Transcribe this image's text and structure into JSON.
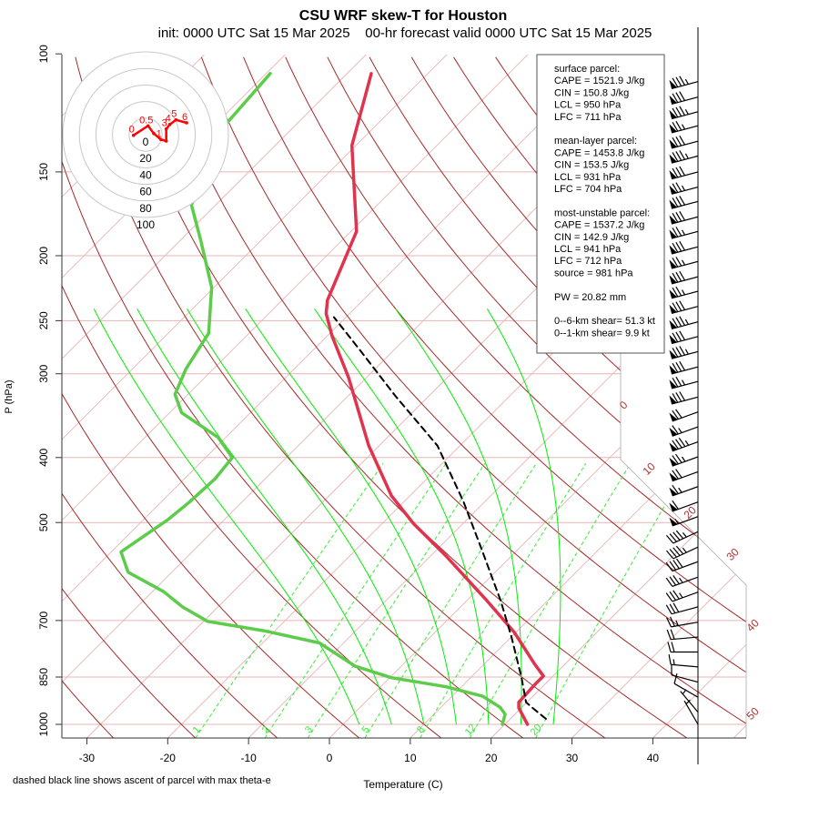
{
  "chart_data": {
    "type": "line",
    "title": "CSU WRF skew-T for Houston",
    "subtitle": "init: 0000 UTC Sat 15 Mar 2025    00-hr forecast valid 0000 UTC Sat 15 Mar 2025",
    "xlabel": "Temperature (C)",
    "ylabel": "P (hPa)",
    "note": "dashed black line shows ascent of parcel with max theta-e",
    "xlim": [
      -33,
      50
    ],
    "ylim": [
      1050,
      100
    ],
    "yscale": "log",
    "skew": "45deg",
    "xticks": [
      -30,
      -20,
      -10,
      0,
      10,
      20,
      30,
      40
    ],
    "yticks": [
      1000,
      850,
      700,
      500,
      400,
      300,
      250,
      200,
      150,
      100
    ],
    "isotherm_labels": [
      "0",
      "10",
      "20",
      "30",
      "40",
      "50"
    ],
    "mixing_ratio_labels": [
      "1",
      "2",
      "3",
      "5",
      "8",
      "12",
      "20"
    ],
    "moist_adiabats_T1000": [
      2,
      6,
      10,
      14,
      18,
      22,
      26
    ],
    "colors": {
      "temperature": "#e0334d",
      "dewpoint": "#5ccc4a",
      "parcel": "#000000",
      "dry_adiabat": "#a52a2a",
      "isotherm": "#e8b4b4",
      "moist_adiabat": "#00ee00",
      "mixing_ratio": "#33ee33",
      "hodograph": "#ff0000"
    },
    "series": [
      {
        "name": "temperature",
        "style": "solid",
        "points": [
          [
            1000,
            22.8
          ],
          [
            945,
            19.7
          ],
          [
            927,
            19.0
          ],
          [
            871,
            18.8
          ],
          [
            847,
            18.8
          ],
          [
            814,
            16.3
          ],
          [
            729,
            9.8
          ],
          [
            654,
            2.5
          ],
          [
            560,
            -8.2
          ],
          [
            502,
            -16.1
          ],
          [
            456,
            -22.3
          ],
          [
            384,
            -31.3
          ],
          [
            304,
            -42.2
          ],
          [
            264,
            -49.3
          ],
          [
            244,
            -52.9
          ],
          [
            233,
            -54.4
          ],
          [
            184,
            -59.3
          ],
          [
            137,
            -70.5
          ],
          [
            107,
            -77.0
          ]
        ]
      },
      {
        "name": "dewpoint",
        "style": "solid",
        "points": [
          [
            1000,
            19.7
          ],
          [
            966,
            18.8
          ],
          [
            943,
            17.3
          ],
          [
            908,
            13.8
          ],
          [
            879,
            8.1
          ],
          [
            852,
            0.2
          ],
          [
            819,
            -5.7
          ],
          [
            756,
            -13.0
          ],
          [
            725,
            -21.4
          ],
          [
            702,
            -29.5
          ],
          [
            668,
            -34.4
          ],
          [
            634,
            -38.6
          ],
          [
            593,
            -45.4
          ],
          [
            553,
            -48.8
          ],
          [
            496,
            -47.0
          ],
          [
            466,
            -46.5
          ],
          [
            430,
            -46.2
          ],
          [
            400,
            -46.7
          ],
          [
            373,
            -51.0
          ],
          [
            343,
            -58.5
          ],
          [
            322,
            -61.6
          ],
          [
            295,
            -63.4
          ],
          [
            261,
            -65.0
          ],
          [
            223,
            -70.3
          ],
          [
            190,
            -77.4
          ],
          [
            168,
            -83.0
          ],
          [
            128,
            -88.7
          ],
          [
            107,
            -89.5
          ]
        ]
      },
      {
        "name": "parcel",
        "style": "dashed",
        "points": [
          [
            981,
            24.4
          ],
          [
            945,
            21.4
          ],
          [
            927,
            19.9
          ],
          [
            852,
            16.3
          ],
          [
            742,
            10.1
          ],
          [
            654,
            4.2
          ],
          [
            545,
            -4.8
          ],
          [
            465,
            -12.7
          ],
          [
            384,
            -22.8
          ],
          [
            324,
            -34.1
          ],
          [
            274,
            -44.8
          ],
          [
            247,
            -51.5
          ]
        ]
      }
    ],
    "wind_barbs": [
      [
        110,
        255,
        85
      ],
      [
        116,
        255,
        80
      ],
      [
        122,
        255,
        85
      ],
      [
        128,
        255,
        75
      ],
      [
        135,
        255,
        80
      ],
      [
        142,
        255,
        85
      ],
      [
        150,
        255,
        80
      ],
      [
        158,
        255,
        75
      ],
      [
        166,
        255,
        80
      ],
      [
        175,
        255,
        80
      ],
      [
        184,
        255,
        75
      ],
      [
        194,
        255,
        80
      ],
      [
        204,
        255,
        75
      ],
      [
        215,
        255,
        80
      ],
      [
        226,
        255,
        75
      ],
      [
        238,
        255,
        80
      ],
      [
        251,
        255,
        85
      ],
      [
        264,
        255,
        80
      ],
      [
        278,
        255,
        85
      ],
      [
        293,
        255,
        80
      ],
      [
        308,
        255,
        75
      ],
      [
        325,
        255,
        80
      ],
      [
        342,
        250,
        70
      ],
      [
        360,
        250,
        65
      ],
      [
        379,
        250,
        85
      ],
      [
        399,
        250,
        75
      ],
      [
        420,
        250,
        70
      ],
      [
        442,
        250,
        65
      ],
      [
        466,
        250,
        60
      ],
      [
        490,
        250,
        55
      ],
      [
        516,
        245,
        45
      ],
      [
        544,
        245,
        45
      ],
      [
        572,
        250,
        40
      ],
      [
        603,
        250,
        35
      ],
      [
        635,
        250,
        35
      ],
      [
        668,
        255,
        30
      ],
      [
        704,
        260,
        25
      ],
      [
        741,
        265,
        20
      ],
      [
        780,
        270,
        20
      ],
      [
        821,
        275,
        15
      ],
      [
        865,
        285,
        10
      ],
      [
        911,
        300,
        10
      ],
      [
        959,
        320,
        5
      ],
      [
        1000,
        330,
        5
      ]
    ],
    "hodograph": {
      "ring_labels": [
        "0",
        "20",
        "40",
        "60",
        "80",
        "100"
      ],
      "points": [
        [
          -14.6,
          -0.8
        ],
        [
          3.0,
          10.7
        ],
        [
          9.9,
          1.4
        ],
        [
          18.4,
          -5.8
        ],
        [
          24.9,
          -7.7
        ],
        [
          24.9,
          6.9
        ],
        [
          29.3,
          12.4
        ],
        [
          36.6,
          17.9
        ],
        [
          49.5,
          14.3
        ]
      ],
      "height_labels": [
        [
          "0",
          0
        ],
        [
          "0.5",
          1
        ],
        [
          "1",
          3
        ],
        [
          "3",
          5
        ],
        [
          "4",
          6
        ],
        [
          "5",
          7
        ],
        [
          "6",
          8
        ]
      ]
    }
  },
  "info_box": {
    "lines": [
      "surface parcel:",
      "CAPE = 1521.9 J/kg",
      "CIN = 150.8 J/kg",
      "LCL = 950 hPa",
      "LFC = 711 hPa",
      "",
      "mean-layer parcel:",
      "CAPE = 1453.8 J/kg",
      "CIN = 153.5 J/kg",
      "LCL = 931 hPa",
      "LFC = 704 hPa",
      "",
      "most-unstable parcel:",
      "CAPE = 1537.2 J/kg",
      "CIN = 142.9 J/kg",
      "LCL = 941 hPa",
      "LFC = 712 hPa",
      "source = 981 hPa",
      "",
      "PW =  20.82 mm",
      "",
      "0--6-km shear= 51.3 kt",
      "0--1-km shear= 9.9 kt"
    ]
  }
}
